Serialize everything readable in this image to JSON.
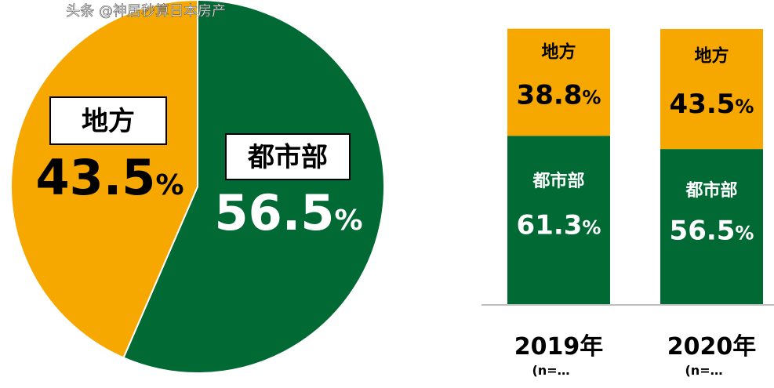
{
  "chart_data": [
    {
      "type": "pie",
      "labels": [
        "都市部",
        "地方"
      ],
      "values": [
        56.5,
        43.5
      ],
      "value_labels": [
        "56.5",
        "43.5"
      ],
      "unit": "%",
      "colors": [
        "#006934",
        "#f7a800"
      ]
    },
    {
      "type": "bar",
      "stacked": true,
      "categories": [
        "2019年",
        "2020年"
      ],
      "category_notes": [
        "(n=…",
        "(n=…"
      ],
      "series": [
        {
          "name": "都市部",
          "values": [
            61.3,
            56.5
          ],
          "value_labels": [
            "61.3",
            "56.5"
          ],
          "color": "#006934"
        },
        {
          "name": "地方",
          "values": [
            38.8,
            43.5
          ],
          "value_labels": [
            "38.8",
            "43.5"
          ],
          "color": "#f7a800"
        }
      ],
      "unit": "%",
      "ylim": [
        0,
        100
      ]
    }
  ],
  "watermark": "头条 @神居秒算日本房产"
}
